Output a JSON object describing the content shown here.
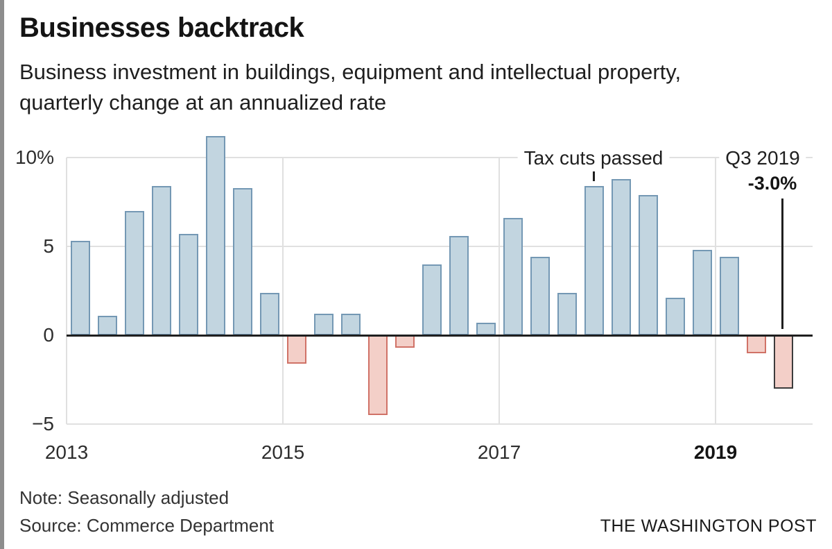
{
  "page": {
    "title": "Businesses backtrack",
    "subtitle_lines": [
      "Business investment in buildings, equipment and intellectual property,",
      "quarterly change at an annualized rate"
    ],
    "note": "Note: Seasonally adjusted",
    "source": "Source: Commerce Department",
    "credit": "THE WASHINGTON POST"
  },
  "annotations": {
    "tax_cuts_label": "Tax cuts passed",
    "tax_cuts_quarter": "2017 Q4",
    "latest_label": "Q3 2019",
    "latest_value": "-3.0%",
    "latest_quarter": "2019 Q3"
  },
  "colors": {
    "positive_fill": "#c2d5e0",
    "positive_stroke": "#7498b4",
    "negative_fill": "#f3cfc8",
    "negative_stroke": "#d07267",
    "highlight_stroke": "#3c3c3c",
    "axis": "#1f1f1f",
    "gridline": "#e0e0e0"
  },
  "chart_data": {
    "type": "bar",
    "title": "Businesses backtrack",
    "subtitle": "Business investment in buildings, equipment and intellectual property, quarterly change at an annualized rate",
    "unit": "percent",
    "ylim": [
      -5,
      11.5
    ],
    "grid": true,
    "categories": [
      "2013 Q1",
      "2013 Q2",
      "2013 Q3",
      "2013 Q4",
      "2014 Q1",
      "2014 Q2",
      "2014 Q3",
      "2014 Q4",
      "2015 Q1",
      "2015 Q2",
      "2015 Q3",
      "2015 Q4",
      "2016 Q1",
      "2016 Q2",
      "2016 Q3",
      "2016 Q4",
      "2017 Q1",
      "2017 Q2",
      "2017 Q3",
      "2017 Q4",
      "2018 Q1",
      "2018 Q2",
      "2018 Q3",
      "2018 Q4",
      "2019 Q1",
      "2019 Q2",
      "2019 Q3"
    ],
    "values": [
      5.3,
      1.1,
      7.0,
      8.4,
      5.7,
      11.2,
      8.3,
      2.4,
      -1.6,
      1.2,
      1.2,
      -4.5,
      -0.7,
      4.0,
      5.6,
      0.7,
      6.6,
      4.4,
      2.4,
      8.4,
      8.8,
      7.9,
      2.1,
      4.8,
      4.4,
      -1.0,
      -3.0
    ],
    "highlight_index": 26,
    "tax_tick_index": 19,
    "yticks": [
      {
        "value": 10,
        "label": "10%"
      },
      {
        "value": 5,
        "label": "5"
      },
      {
        "value": 0,
        "label": "0"
      },
      {
        "value": -5,
        "label": "−5"
      }
    ],
    "xticks": [
      {
        "index": 0,
        "label": "2013",
        "bold": false
      },
      {
        "index": 8,
        "label": "2015",
        "bold": false
      },
      {
        "index": 16,
        "label": "2017",
        "bold": false
      },
      {
        "index": 24,
        "label": "2019",
        "bold": true
      }
    ]
  }
}
